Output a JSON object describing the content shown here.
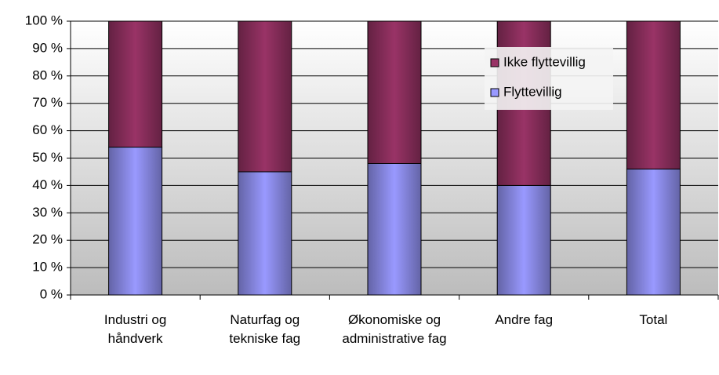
{
  "chart_data": {
    "type": "stacked_bar",
    "categories": [
      "Industri og håndverk",
      "Naturfag og tekniske fag",
      "Økonomiske og administrative fag",
      "Andre fag",
      "Total"
    ],
    "series": [
      {
        "name": "Flyttevillig",
        "color": "#9999ff",
        "values": [
          54,
          45,
          48,
          40,
          46
        ]
      },
      {
        "name": "Ikke flyttevillig",
        "color": "#993366",
        "values": [
          46,
          55,
          52,
          60,
          54
        ]
      }
    ],
    "ylim": [
      0,
      100
    ],
    "yticks": [
      {
        "value": 0,
        "label": "0 %"
      },
      {
        "value": 10,
        "label": "10 %"
      },
      {
        "value": 20,
        "label": "20 %"
      },
      {
        "value": 30,
        "label": "30 %"
      },
      {
        "value": 40,
        "label": "40 %"
      },
      {
        "value": 50,
        "label": "50 %"
      },
      {
        "value": 60,
        "label": "60 %"
      },
      {
        "value": 70,
        "label": "70 %"
      },
      {
        "value": 80,
        "label": "80 %"
      },
      {
        "value": 90,
        "label": "90 %"
      },
      {
        "value": 100,
        "label": "100 %"
      }
    ],
    "grid": true,
    "legend": "upper right"
  }
}
